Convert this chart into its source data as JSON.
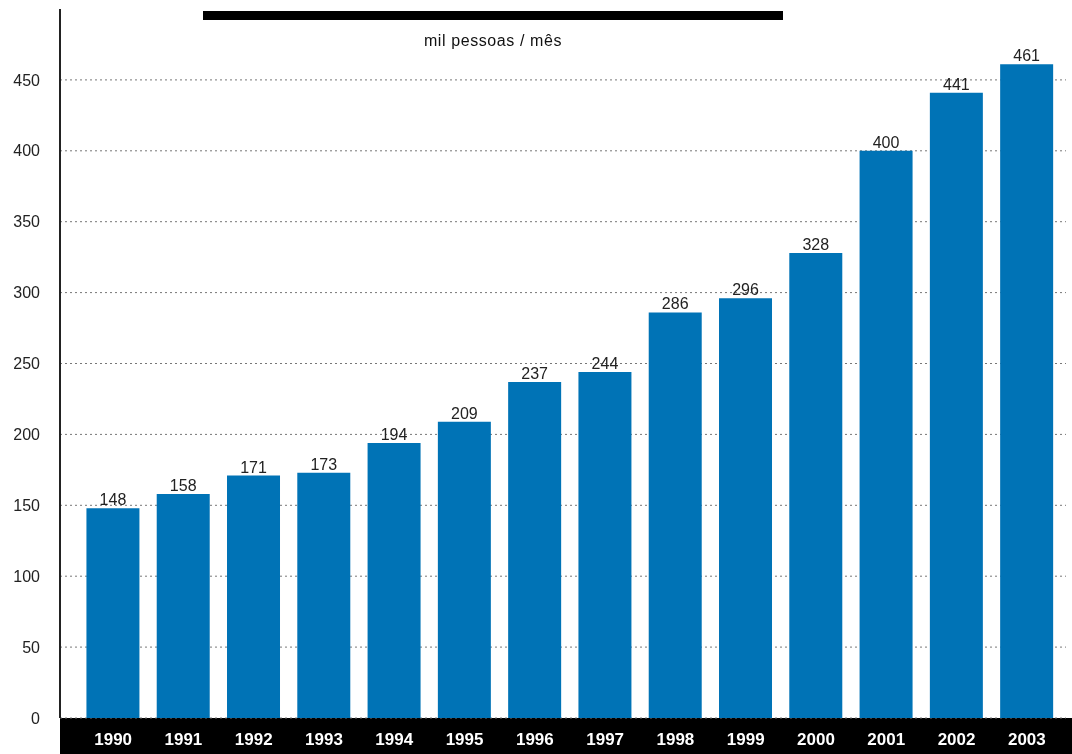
{
  "chart_data": {
    "type": "bar",
    "title": "mil pessoas / mês",
    "categories": [
      "1990",
      "1991",
      "1992",
      "1993",
      "1994",
      "1995",
      "1996",
      "1997",
      "1998",
      "1999",
      "2000",
      "2001",
      "2002",
      "2003"
    ],
    "values": [
      148,
      158,
      171,
      173,
      194,
      209,
      237,
      244,
      286,
      296,
      328,
      400,
      441,
      461
    ],
    "color": "#0073b6",
    "ylim": [
      0,
      500
    ],
    "yticks": [
      0,
      50,
      100,
      150,
      200,
      250,
      300,
      350,
      400,
      450
    ],
    "grid": "y",
    "data_labels": true
  }
}
